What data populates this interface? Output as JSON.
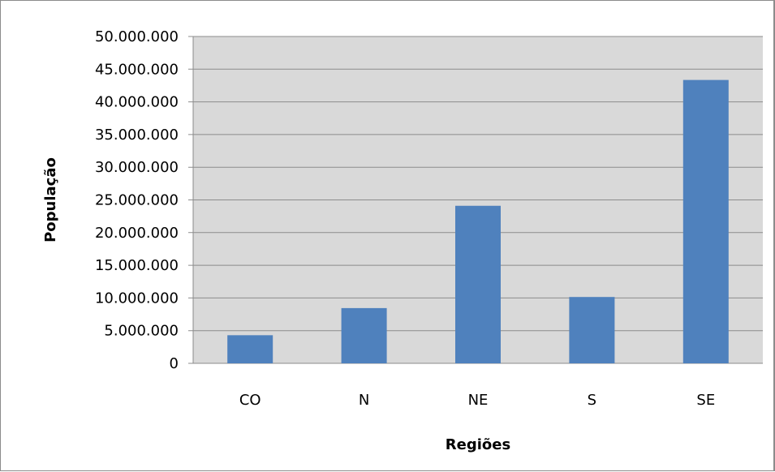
{
  "chart_data": {
    "type": "bar",
    "title": "",
    "xlabel": "Regiões",
    "ylabel": "População",
    "categories": [
      "CO",
      "N",
      "NE",
      "S",
      "SE"
    ],
    "series": [
      {
        "values": [
          4300000,
          8450000,
          24100000,
          10150000,
          43350000
        ]
      }
    ],
    "ylim": [
      0,
      50000000
    ],
    "y_ticks": [
      0,
      5000000,
      10000000,
      15000000,
      20000000,
      25000000,
      30000000,
      35000000,
      40000000,
      45000000,
      50000000
    ],
    "y_tick_labels": [
      "0",
      "5.000.000",
      "10.000.000",
      "15.000.000",
      "20.000.000",
      "25.000.000",
      "30.000.000",
      "35.000.000",
      "40.000.000",
      "45.000.000",
      "50.000.000"
    ],
    "grid": true,
    "legend": "none",
    "colors": {
      "bar": "#4f81bd",
      "plot_background": "#d9d9d9",
      "gridline": "#8c8c8c"
    }
  }
}
